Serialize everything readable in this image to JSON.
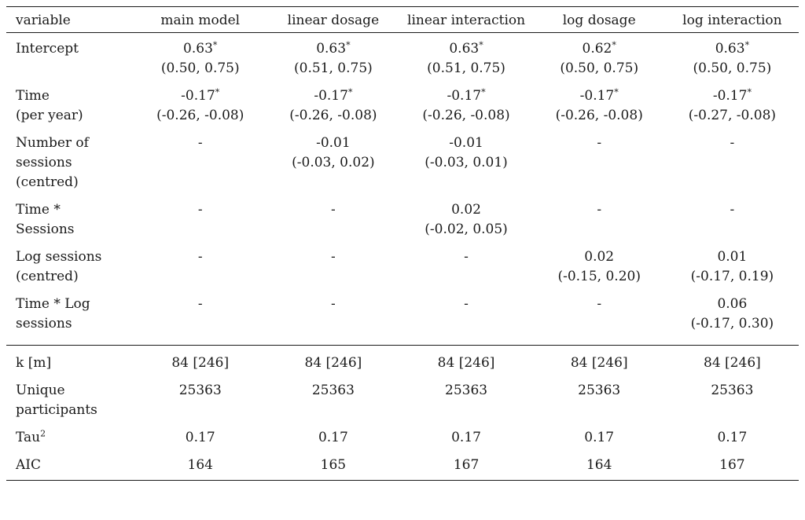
{
  "columns": [
    "variable",
    "main model",
    "linear dosage",
    "linear interaction",
    "log dosage",
    "log interaction"
  ],
  "coefficients": [
    {
      "label": [
        "Intercept"
      ],
      "cells": [
        {
          "est": "0.63",
          "sig": "*",
          "ci": "(0.50, 0.75)"
        },
        {
          "est": "0.63",
          "sig": "*",
          "ci": "(0.51, 0.75)"
        },
        {
          "est": "0.63",
          "sig": "*",
          "ci": "(0.51, 0.75)"
        },
        {
          "est": "0.62",
          "sig": "*",
          "ci": "(0.50, 0.75)"
        },
        {
          "est": "0.63",
          "sig": "*",
          "ci": "(0.50, 0.75)"
        }
      ]
    },
    {
      "label": [
        "Time",
        "(per year)"
      ],
      "cells": [
        {
          "est": "-0.17",
          "sig": "*",
          "ci": "(-0.26, -0.08)"
        },
        {
          "est": "-0.17",
          "sig": "*",
          "ci": "(-0.26, -0.08)"
        },
        {
          "est": "-0.17",
          "sig": "*",
          "ci": "(-0.26, -0.08)"
        },
        {
          "est": "-0.17",
          "sig": "*",
          "ci": "(-0.26, -0.08)"
        },
        {
          "est": "-0.17",
          "sig": "*",
          "ci": "(-0.27, -0.08)"
        }
      ]
    },
    {
      "label": [
        "Number of",
        "sessions",
        "(centred)"
      ],
      "cells": [
        {
          "est": "-",
          "sig": "",
          "ci": ""
        },
        {
          "est": "-0.01",
          "sig": "",
          "ci": "(-0.03, 0.02)"
        },
        {
          "est": "-0.01",
          "sig": "",
          "ci": "(-0.03, 0.01)"
        },
        {
          "est": "-",
          "sig": "",
          "ci": ""
        },
        {
          "est": "-",
          "sig": "",
          "ci": ""
        }
      ]
    },
    {
      "label": [
        "Time *",
        "Sessions"
      ],
      "cells": [
        {
          "est": "-",
          "sig": "",
          "ci": ""
        },
        {
          "est": "-",
          "sig": "",
          "ci": ""
        },
        {
          "est": "0.02",
          "sig": "",
          "ci": "(-0.02, 0.05)"
        },
        {
          "est": "-",
          "sig": "",
          "ci": ""
        },
        {
          "est": "-",
          "sig": "",
          "ci": ""
        }
      ]
    },
    {
      "label": [
        "Log sessions",
        "(centred)"
      ],
      "cells": [
        {
          "est": "-",
          "sig": "",
          "ci": ""
        },
        {
          "est": "-",
          "sig": "",
          "ci": ""
        },
        {
          "est": "-",
          "sig": "",
          "ci": ""
        },
        {
          "est": "0.02",
          "sig": "",
          "ci": "(-0.15, 0.20)"
        },
        {
          "est": "0.01",
          "sig": "",
          "ci": "(-0.17, 0.19)"
        }
      ]
    },
    {
      "label": [
        "Time * Log",
        "sessions"
      ],
      "cells": [
        {
          "est": "-",
          "sig": "",
          "ci": ""
        },
        {
          "est": "-",
          "sig": "",
          "ci": ""
        },
        {
          "est": "-",
          "sig": "",
          "ci": ""
        },
        {
          "est": "-",
          "sig": "",
          "ci": ""
        },
        {
          "est": "0.06",
          "sig": "",
          "ci": "(-0.17, 0.30)"
        }
      ]
    }
  ],
  "fit_stats": [
    {
      "label": [
        "k [m]"
      ],
      "sup": "",
      "values": [
        "84 [246]",
        "84 [246]",
        "84 [246]",
        "84 [246]",
        "84 [246]"
      ]
    },
    {
      "label": [
        "Unique",
        "participants"
      ],
      "sup": "",
      "values": [
        "25363",
        "25363",
        "25363",
        "25363",
        "25363"
      ]
    },
    {
      "label": [
        "Tau"
      ],
      "sup": "2",
      "values": [
        "0.17",
        "0.17",
        "0.17",
        "0.17",
        "0.17"
      ]
    },
    {
      "label": [
        "AIC"
      ],
      "sup": "",
      "values": [
        "164",
        "165",
        "167",
        "164",
        "167"
      ]
    }
  ]
}
